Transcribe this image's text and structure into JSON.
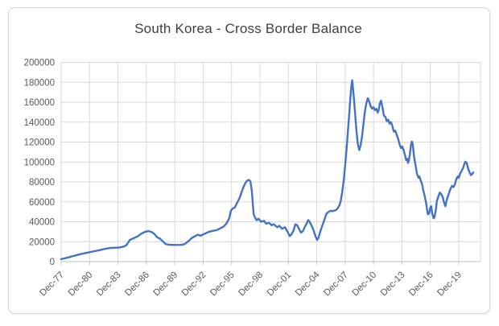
{
  "chart_data": {
    "type": "line",
    "title": "South Korea - Cross Border Balance",
    "xlabel": "",
    "ylabel": "",
    "ylim": [
      0,
      200000
    ],
    "y_tick_step": 20000,
    "y_tick_labels": [
      "200000",
      "180000",
      "160000",
      "140000",
      "120000",
      "100000",
      "80000",
      "60000",
      "40000",
      "20000",
      "0"
    ],
    "x_tick_labels": [
      "Dec-77",
      "Dec-80",
      "Dec-83",
      "Dec-86",
      "Dec-89",
      "Dec-92",
      "Dec-95",
      "Dec-98",
      "Dec-01",
      "Dec-04",
      "Dec-07",
      "Dec-10",
      "Dec-13",
      "Dec-16",
      "Dec-19"
    ],
    "x_tick_interval_years": 3,
    "x_start_year": 1977.96,
    "grid": true,
    "legend": "none",
    "series_name": "Cross Border Balance",
    "points": [
      [
        1977.96,
        2500
      ],
      [
        1978.3,
        3200
      ],
      [
        1978.7,
        4200
      ],
      [
        1979.0,
        5000
      ],
      [
        1979.5,
        6200
      ],
      [
        1980.0,
        7500
      ],
      [
        1980.5,
        8600
      ],
      [
        1981.0,
        9500
      ],
      [
        1981.5,
        10500
      ],
      [
        1982.0,
        11500
      ],
      [
        1982.5,
        12600
      ],
      [
        1983.0,
        13500
      ],
      [
        1983.4,
        13900
      ],
      [
        1983.8,
        14000
      ],
      [
        1984.2,
        14300
      ],
      [
        1984.6,
        15200
      ],
      [
        1984.85,
        16500
      ],
      [
        1985.0,
        18500
      ],
      [
        1985.2,
        21700
      ],
      [
        1985.5,
        23000
      ],
      [
        1986.0,
        25200
      ],
      [
        1986.4,
        27900
      ],
      [
        1986.8,
        29800
      ],
      [
        1987.2,
        30600
      ],
      [
        1987.5,
        29800
      ],
      [
        1987.8,
        27900
      ],
      [
        1988.1,
        24400
      ],
      [
        1988.4,
        23000
      ],
      [
        1988.7,
        20300
      ],
      [
        1989.0,
        17600
      ],
      [
        1989.4,
        16900
      ],
      [
        1989.8,
        16700
      ],
      [
        1990.2,
        16700
      ],
      [
        1990.6,
        16800
      ],
      [
        1991.0,
        17500
      ],
      [
        1991.4,
        20500
      ],
      [
        1991.8,
        24000
      ],
      [
        1992.1,
        25500
      ],
      [
        1992.4,
        27000
      ],
      [
        1992.7,
        26000
      ],
      [
        1993.0,
        27400
      ],
      [
        1993.3,
        28800
      ],
      [
        1993.6,
        30100
      ],
      [
        1994.0,
        30900
      ],
      [
        1994.4,
        31700
      ],
      [
        1994.8,
        33600
      ],
      [
        1995.1,
        35000
      ],
      [
        1995.4,
        38000
      ],
      [
        1995.7,
        43300
      ],
      [
        1995.9,
        51400
      ],
      [
        1996.1,
        53400
      ],
      [
        1996.3,
        54200
      ],
      [
        1996.5,
        58300
      ],
      [
        1996.8,
        63700
      ],
      [
        1997.0,
        69100
      ],
      [
        1997.2,
        74500
      ],
      [
        1997.4,
        78600
      ],
      [
        1997.6,
        81300
      ],
      [
        1997.8,
        82000
      ],
      [
        1997.95,
        80500
      ],
      [
        1998.1,
        71000
      ],
      [
        1998.2,
        58000
      ],
      [
        1998.3,
        47500
      ],
      [
        1998.45,
        44000
      ],
      [
        1998.6,
        41500
      ],
      [
        1998.8,
        43000
      ],
      [
        1999.1,
        40000
      ],
      [
        1999.4,
        41000
      ],
      [
        1999.6,
        38000
      ],
      [
        1999.9,
        39000
      ],
      [
        2000.2,
        36500
      ],
      [
        2000.4,
        37500
      ],
      [
        2000.8,
        34500
      ],
      [
        2001.0,
        36000
      ],
      [
        2001.3,
        33000
      ],
      [
        2001.6,
        34500
      ],
      [
        2001.9,
        29500
      ],
      [
        2002.1,
        25500
      ],
      [
        2002.3,
        27500
      ],
      [
        2002.5,
        31000
      ],
      [
        2002.7,
        37500
      ],
      [
        2002.9,
        36500
      ],
      [
        2003.1,
        32500
      ],
      [
        2003.3,
        29000
      ],
      [
        2003.5,
        30700
      ],
      [
        2003.7,
        34800
      ],
      [
        2003.9,
        38500
      ],
      [
        2004.05,
        41600
      ],
      [
        2004.2,
        40200
      ],
      [
        2004.4,
        36200
      ],
      [
        2004.6,
        32100
      ],
      [
        2004.8,
        26000
      ],
      [
        2005.0,
        21700
      ],
      [
        2005.15,
        23900
      ],
      [
        2005.3,
        29400
      ],
      [
        2005.5,
        34800
      ],
      [
        2005.7,
        40200
      ],
      [
        2005.85,
        44300
      ],
      [
        2006.0,
        48400
      ],
      [
        2006.2,
        49800
      ],
      [
        2006.4,
        51100
      ],
      [
        2006.6,
        50600
      ],
      [
        2006.8,
        51200
      ],
      [
        2007.0,
        51700
      ],
      [
        2007.2,
        53900
      ],
      [
        2007.35,
        56600
      ],
      [
        2007.5,
        61000
      ],
      [
        2007.65,
        70000
      ],
      [
        2007.8,
        81000
      ],
      [
        2007.95,
        95000
      ],
      [
        2008.1,
        112000
      ],
      [
        2008.25,
        131000
      ],
      [
        2008.4,
        149000
      ],
      [
        2008.5,
        163000
      ],
      [
        2008.6,
        175000
      ],
      [
        2008.7,
        182000
      ],
      [
        2008.85,
        168000
      ],
      [
        2009.0,
        150000
      ],
      [
        2009.15,
        131000
      ],
      [
        2009.3,
        118000
      ],
      [
        2009.45,
        112000
      ],
      [
        2009.6,
        117000
      ],
      [
        2009.75,
        126000
      ],
      [
        2009.9,
        139000
      ],
      [
        2010.05,
        151000
      ],
      [
        2010.2,
        159000
      ],
      [
        2010.35,
        164000
      ],
      [
        2010.5,
        161000
      ],
      [
        2010.65,
        156000
      ],
      [
        2010.8,
        153500
      ],
      [
        2010.95,
        155000
      ],
      [
        2011.1,
        152000
      ],
      [
        2011.25,
        153500
      ],
      [
        2011.4,
        149500
      ],
      [
        2011.5,
        152000
      ],
      [
        2011.6,
        158000
      ],
      [
        2011.75,
        161500
      ],
      [
        2011.9,
        155000
      ],
      [
        2012.05,
        146500
      ],
      [
        2012.2,
        145500
      ],
      [
        2012.35,
        141000
      ],
      [
        2012.5,
        142500
      ],
      [
        2012.65,
        138500
      ],
      [
        2012.8,
        140000
      ],
      [
        2012.95,
        136000
      ],
      [
        2013.1,
        130500
      ],
      [
        2013.25,
        131500
      ],
      [
        2013.4,
        127500
      ],
      [
        2013.55,
        123500
      ],
      [
        2013.7,
        118000
      ],
      [
        2013.85,
        114000
      ],
      [
        2014.0,
        115500
      ],
      [
        2014.15,
        111500
      ],
      [
        2014.3,
        106000
      ],
      [
        2014.4,
        102000
      ],
      [
        2014.5,
        103200
      ],
      [
        2014.6,
        99100
      ],
      [
        2014.7,
        102000
      ],
      [
        2014.8,
        108000
      ],
      [
        2014.9,
        116700
      ],
      [
        2015.0,
        120500
      ],
      [
        2015.1,
        118000
      ],
      [
        2015.25,
        104500
      ],
      [
        2015.4,
        96400
      ],
      [
        2015.55,
        88200
      ],
      [
        2015.7,
        84100
      ],
      [
        2015.8,
        85500
      ],
      [
        2015.95,
        81400
      ],
      [
        2016.1,
        77300
      ],
      [
        2016.2,
        71800
      ],
      [
        2016.35,
        66400
      ],
      [
        2016.5,
        59500
      ],
      [
        2016.6,
        52900
      ],
      [
        2016.7,
        47400
      ],
      [
        2016.85,
        48800
      ],
      [
        2016.95,
        54300
      ],
      [
        2017.05,
        55600
      ],
      [
        2017.15,
        48800
      ],
      [
        2017.3,
        43400
      ],
      [
        2017.4,
        44800
      ],
      [
        2017.55,
        52900
      ],
      [
        2017.65,
        61100
      ],
      [
        2017.8,
        65200
      ],
      [
        2017.95,
        69300
      ],
      [
        2018.1,
        67900
      ],
      [
        2018.25,
        65200
      ],
      [
        2018.4,
        59500
      ],
      [
        2018.55,
        55600
      ],
      [
        2018.7,
        62500
      ],
      [
        2018.9,
        67900
      ],
      [
        2019.0,
        70700
      ],
      [
        2019.1,
        73400
      ],
      [
        2019.25,
        76100
      ],
      [
        2019.4,
        74800
      ],
      [
        2019.55,
        77500
      ],
      [
        2019.7,
        82700
      ],
      [
        2019.85,
        85500
      ],
      [
        2019.96,
        84100
      ],
      [
        2020.1,
        88200
      ],
      [
        2020.25,
        90900
      ],
      [
        2020.4,
        93600
      ],
      [
        2020.55,
        97700
      ],
      [
        2020.65,
        100400
      ],
      [
        2020.8,
        99100
      ],
      [
        2020.95,
        93600
      ],
      [
        2021.1,
        89500
      ],
      [
        2021.25,
        86800
      ],
      [
        2021.4,
        88200
      ],
      [
        2021.5,
        89500
      ]
    ],
    "colors": {
      "series_line": "#4472c4",
      "gridline": "#d9d9d9",
      "axis_line": "#bfbfbf",
      "tick_label": "#595959",
      "title": "#3f3f3f",
      "frame_border": "#d6d6d6",
      "background": "#ffffff"
    }
  }
}
